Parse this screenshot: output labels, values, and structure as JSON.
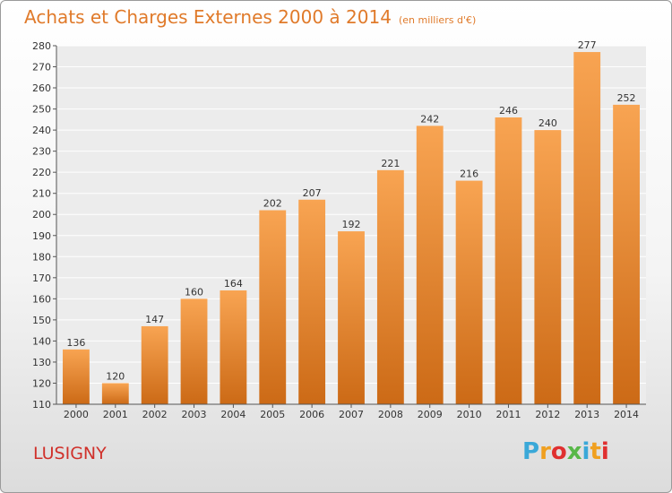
{
  "header": {
    "title": "Achats et Charges Externes 2000 à 2014",
    "subtitle": "(en milliers d'€)"
  },
  "footer": {
    "location": "LUSIGNY",
    "logo_letters": [
      "P",
      "r",
      "o",
      "x",
      "i",
      "t",
      "i"
    ],
    "logo_colors": [
      "#3aa8d8",
      "#f0a020",
      "#e03030",
      "#58b848",
      "#3aa8d8",
      "#f0a020",
      "#e03030"
    ]
  },
  "chart_data": {
    "type": "bar",
    "categories": [
      "2000",
      "2001",
      "2002",
      "2003",
      "2004",
      "2005",
      "2006",
      "2007",
      "2008",
      "2009",
      "2010",
      "2011",
      "2012",
      "2013",
      "2014"
    ],
    "values": [
      136,
      120,
      147,
      160,
      164,
      202,
      207,
      192,
      221,
      242,
      216,
      246,
      240,
      277,
      252
    ],
    "ylim": [
      110,
      280
    ],
    "yticks": [
      110,
      120,
      130,
      140,
      150,
      160,
      170,
      180,
      190,
      200,
      210,
      220,
      230,
      240,
      250,
      260,
      270,
      280
    ],
    "grid": true,
    "bar_color": "#f0903a"
  }
}
